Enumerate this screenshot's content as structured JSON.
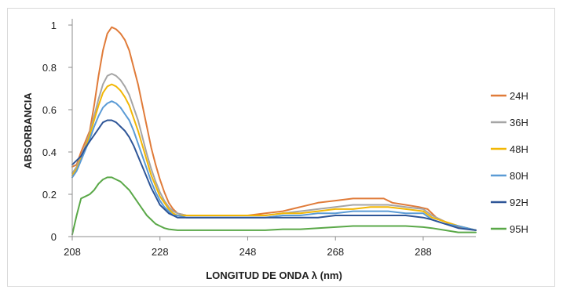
{
  "chart_data": {
    "type": "line",
    "title": "",
    "xlabel": "LONGITUD DE ONDA λ (nm)",
    "ylabel": "ABSORBANCIA",
    "xlim": [
      208,
      300
    ],
    "ylim": [
      0,
      1
    ],
    "x_ticks": [
      208,
      228,
      248,
      268,
      288
    ],
    "y_ticks": [
      0,
      0.2,
      0.4,
      0.6,
      0.8,
      1
    ],
    "y_tick_labels": [
      "0",
      "0.2",
      "0.4",
      "0.6",
      "0.8",
      "1"
    ],
    "grid": false,
    "legend_position": "right",
    "series": [
      {
        "name": "24H",
        "color": "#e07b39",
        "points": [
          [
            208,
            0.33
          ],
          [
            209,
            0.34
          ],
          [
            210,
            0.4
          ],
          [
            211,
            0.45
          ],
          [
            212,
            0.5
          ],
          [
            213,
            0.62
          ],
          [
            214,
            0.76
          ],
          [
            215,
            0.88
          ],
          [
            216,
            0.96
          ],
          [
            217,
            0.99
          ],
          [
            218,
            0.98
          ],
          [
            219,
            0.96
          ],
          [
            220,
            0.93
          ],
          [
            221,
            0.88
          ],
          [
            222,
            0.8
          ],
          [
            223,
            0.72
          ],
          [
            224,
            0.62
          ],
          [
            225,
            0.52
          ],
          [
            226,
            0.42
          ],
          [
            227,
            0.34
          ],
          [
            228,
            0.27
          ],
          [
            229,
            0.21
          ],
          [
            230,
            0.16
          ],
          [
            231,
            0.13
          ],
          [
            232,
            0.11
          ],
          [
            234,
            0.1
          ],
          [
            238,
            0.1
          ],
          [
            244,
            0.1
          ],
          [
            248,
            0.1
          ],
          [
            252,
            0.11
          ],
          [
            256,
            0.12
          ],
          [
            260,
            0.14
          ],
          [
            264,
            0.16
          ],
          [
            268,
            0.17
          ],
          [
            272,
            0.18
          ],
          [
            276,
            0.18
          ],
          [
            279,
            0.18
          ],
          [
            281,
            0.16
          ],
          [
            284,
            0.15
          ],
          [
            287,
            0.14
          ],
          [
            289,
            0.13
          ],
          [
            291,
            0.09
          ],
          [
            294,
            0.06
          ],
          [
            297,
            0.04
          ],
          [
            300,
            0.03
          ]
        ]
      },
      {
        "name": "36H",
        "color": "#a5a5a5",
        "points": [
          [
            208,
            0.3
          ],
          [
            209,
            0.33
          ],
          [
            210,
            0.38
          ],
          [
            211,
            0.43
          ],
          [
            212,
            0.49
          ],
          [
            213,
            0.57
          ],
          [
            214,
            0.65
          ],
          [
            215,
            0.72
          ],
          [
            216,
            0.76
          ],
          [
            217,
            0.77
          ],
          [
            218,
            0.76
          ],
          [
            219,
            0.74
          ],
          [
            220,
            0.71
          ],
          [
            221,
            0.67
          ],
          [
            222,
            0.61
          ],
          [
            223,
            0.55
          ],
          [
            224,
            0.47
          ],
          [
            225,
            0.39
          ],
          [
            226,
            0.32
          ],
          [
            227,
            0.26
          ],
          [
            228,
            0.21
          ],
          [
            229,
            0.17
          ],
          [
            230,
            0.14
          ],
          [
            231,
            0.12
          ],
          [
            232,
            0.11
          ],
          [
            234,
            0.1
          ],
          [
            240,
            0.1
          ],
          [
            248,
            0.1
          ],
          [
            252,
            0.1
          ],
          [
            256,
            0.11
          ],
          [
            260,
            0.12
          ],
          [
            264,
            0.13
          ],
          [
            268,
            0.14
          ],
          [
            272,
            0.15
          ],
          [
            276,
            0.15
          ],
          [
            280,
            0.15
          ],
          [
            284,
            0.14
          ],
          [
            288,
            0.13
          ],
          [
            290,
            0.1
          ],
          [
            293,
            0.07
          ],
          [
            296,
            0.05
          ],
          [
            300,
            0.03
          ]
        ]
      },
      {
        "name": "48H",
        "color": "#f2b705",
        "points": [
          [
            208,
            0.29
          ],
          [
            209,
            0.32
          ],
          [
            210,
            0.37
          ],
          [
            211,
            0.42
          ],
          [
            212,
            0.48
          ],
          [
            213,
            0.55
          ],
          [
            214,
            0.62
          ],
          [
            215,
            0.68
          ],
          [
            216,
            0.71
          ],
          [
            217,
            0.72
          ],
          [
            218,
            0.71
          ],
          [
            219,
            0.69
          ],
          [
            220,
            0.66
          ],
          [
            221,
            0.62
          ],
          [
            222,
            0.56
          ],
          [
            223,
            0.5
          ],
          [
            224,
            0.43
          ],
          [
            225,
            0.36
          ],
          [
            226,
            0.29
          ],
          [
            227,
            0.24
          ],
          [
            228,
            0.19
          ],
          [
            229,
            0.16
          ],
          [
            230,
            0.13
          ],
          [
            231,
            0.11
          ],
          [
            232,
            0.1
          ],
          [
            234,
            0.1
          ],
          [
            240,
            0.1
          ],
          [
            248,
            0.1
          ],
          [
            252,
            0.1
          ],
          [
            256,
            0.11
          ],
          [
            260,
            0.11
          ],
          [
            264,
            0.12
          ],
          [
            268,
            0.13
          ],
          [
            272,
            0.13
          ],
          [
            276,
            0.14
          ],
          [
            280,
            0.14
          ],
          [
            284,
            0.13
          ],
          [
            288,
            0.12
          ],
          [
            290,
            0.09
          ],
          [
            293,
            0.07
          ],
          [
            296,
            0.05
          ],
          [
            300,
            0.03
          ]
        ]
      },
      {
        "name": "80H",
        "color": "#5b9bd5",
        "points": [
          [
            208,
            0.28
          ],
          [
            209,
            0.31
          ],
          [
            210,
            0.36
          ],
          [
            211,
            0.41
          ],
          [
            212,
            0.46
          ],
          [
            213,
            0.52
          ],
          [
            214,
            0.57
          ],
          [
            215,
            0.61
          ],
          [
            216,
            0.63
          ],
          [
            217,
            0.64
          ],
          [
            218,
            0.63
          ],
          [
            219,
            0.61
          ],
          [
            220,
            0.58
          ],
          [
            221,
            0.55
          ],
          [
            222,
            0.5
          ],
          [
            223,
            0.44
          ],
          [
            224,
            0.38
          ],
          [
            225,
            0.32
          ],
          [
            226,
            0.26
          ],
          [
            227,
            0.21
          ],
          [
            228,
            0.17
          ],
          [
            229,
            0.14
          ],
          [
            230,
            0.12
          ],
          [
            231,
            0.1
          ],
          [
            232,
            0.1
          ],
          [
            234,
            0.09
          ],
          [
            240,
            0.09
          ],
          [
            248,
            0.09
          ],
          [
            252,
            0.09
          ],
          [
            256,
            0.1
          ],
          [
            260,
            0.1
          ],
          [
            264,
            0.11
          ],
          [
            268,
            0.11
          ],
          [
            272,
            0.12
          ],
          [
            276,
            0.12
          ],
          [
            280,
            0.12
          ],
          [
            284,
            0.11
          ],
          [
            288,
            0.11
          ],
          [
            290,
            0.08
          ],
          [
            293,
            0.06
          ],
          [
            296,
            0.05
          ],
          [
            300,
            0.03
          ]
        ]
      },
      {
        "name": "92H",
        "color": "#2e5597",
        "points": [
          [
            208,
            0.34
          ],
          [
            209,
            0.36
          ],
          [
            210,
            0.38
          ],
          [
            211,
            0.42
          ],
          [
            212,
            0.45
          ],
          [
            213,
            0.48
          ],
          [
            214,
            0.51
          ],
          [
            215,
            0.54
          ],
          [
            216,
            0.55
          ],
          [
            217,
            0.55
          ],
          [
            218,
            0.54
          ],
          [
            219,
            0.52
          ],
          [
            220,
            0.5
          ],
          [
            221,
            0.47
          ],
          [
            222,
            0.43
          ],
          [
            223,
            0.38
          ],
          [
            224,
            0.33
          ],
          [
            225,
            0.28
          ],
          [
            226,
            0.23
          ],
          [
            227,
            0.19
          ],
          [
            228,
            0.15
          ],
          [
            229,
            0.13
          ],
          [
            230,
            0.11
          ],
          [
            231,
            0.1
          ],
          [
            232,
            0.09
          ],
          [
            234,
            0.09
          ],
          [
            240,
            0.09
          ],
          [
            248,
            0.09
          ],
          [
            252,
            0.09
          ],
          [
            256,
            0.09
          ],
          [
            260,
            0.09
          ],
          [
            264,
            0.09
          ],
          [
            268,
            0.1
          ],
          [
            272,
            0.1
          ],
          [
            276,
            0.1
          ],
          [
            280,
            0.1
          ],
          [
            284,
            0.1
          ],
          [
            288,
            0.09
          ],
          [
            290,
            0.08
          ],
          [
            293,
            0.06
          ],
          [
            296,
            0.04
          ],
          [
            300,
            0.03
          ]
        ]
      },
      {
        "name": "95H",
        "color": "#5aa848",
        "points": [
          [
            208,
            0.01
          ],
          [
            209,
            0.1
          ],
          [
            210,
            0.18
          ],
          [
            211,
            0.19
          ],
          [
            212,
            0.2
          ],
          [
            213,
            0.22
          ],
          [
            214,
            0.25
          ],
          [
            215,
            0.27
          ],
          [
            216,
            0.28
          ],
          [
            217,
            0.28
          ],
          [
            218,
            0.27
          ],
          [
            219,
            0.26
          ],
          [
            220,
            0.24
          ],
          [
            221,
            0.22
          ],
          [
            222,
            0.19
          ],
          [
            223,
            0.16
          ],
          [
            224,
            0.13
          ],
          [
            225,
            0.1
          ],
          [
            226,
            0.08
          ],
          [
            227,
            0.06
          ],
          [
            228,
            0.05
          ],
          [
            229,
            0.04
          ],
          [
            230,
            0.035
          ],
          [
            232,
            0.03
          ],
          [
            240,
            0.03
          ],
          [
            248,
            0.03
          ],
          [
            252,
            0.03
          ],
          [
            256,
            0.035
          ],
          [
            260,
            0.035
          ],
          [
            264,
            0.04
          ],
          [
            268,
            0.045
          ],
          [
            272,
            0.05
          ],
          [
            276,
            0.05
          ],
          [
            280,
            0.05
          ],
          [
            284,
            0.05
          ],
          [
            288,
            0.045
          ],
          [
            290,
            0.04
          ],
          [
            293,
            0.03
          ],
          [
            296,
            0.02
          ],
          [
            300,
            0.02
          ]
        ]
      }
    ]
  }
}
